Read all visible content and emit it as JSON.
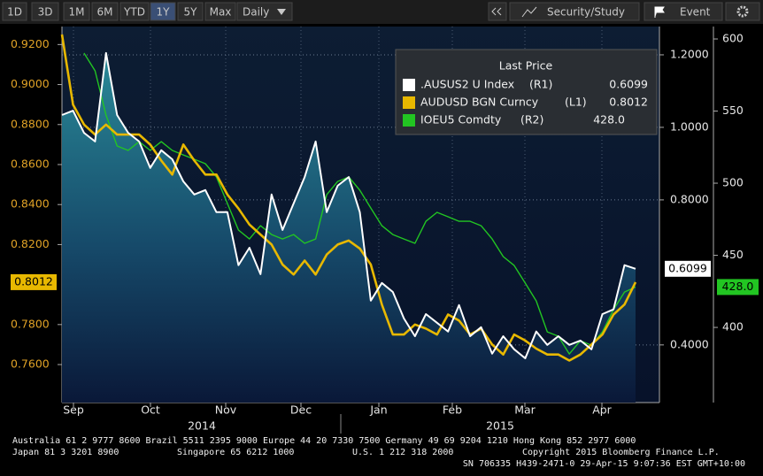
{
  "toolbar": {
    "buttons": [
      "1D",
      "3D",
      "1M",
      "6M",
      "YTD",
      "1Y",
      "5Y",
      "Max",
      "Daily"
    ],
    "selected": 5,
    "right": [
      "Security/Study",
      "Event"
    ]
  },
  "chart_data": {
    "type": "line",
    "legend_title": "Last Price",
    "months": [
      "Sep",
      "Oct",
      "Nov",
      "Dec",
      "Jan",
      "Feb",
      "Mar",
      "Apr"
    ],
    "years": [
      "2014",
      "2015"
    ],
    "ylim": [
      0.741,
      0.929
    ],
    "yticks": [
      {
        "value": 0.92,
        "label": "0.9200"
      },
      {
        "value": 0.9,
        "label": "0.9000"
      },
      {
        "value": 0.88,
        "label": "0.8800"
      },
      {
        "value": 0.86,
        "label": "0.8600"
      },
      {
        "value": 0.84,
        "label": "0.8400"
      },
      {
        "value": 0.82,
        "label": "0.8200"
      },
      {
        "value": 0.78,
        "label": "0.7800"
      },
      {
        "value": 0.76,
        "label": "0.7600"
      }
    ],
    "y2lim": [
      0.241,
      1.278
    ],
    "y2ticks": [
      {
        "value": 1.2,
        "label": "1.2000"
      },
      {
        "value": 1.0,
        "label": "1.0000"
      },
      {
        "value": 0.8,
        "label": "0.8000"
      },
      {
        "value": 0.4,
        "label": "0.4000"
      }
    ],
    "y3lim": [
      347.9,
      608.6
    ],
    "y3ticks": [
      600,
      550,
      500,
      450,
      400
    ],
    "grid": true,
    "series": [
      {
        "name": ".AUSUS2 U Index",
        "axis_label": "(R1)",
        "last_label": "0.6099",
        "axis": "y2",
        "color": "#ffffff",
        "fill_below": true,
        "values": [
          1.034,
          1.046,
          0.985,
          0.961,
          1.205,
          1.034,
          0.985,
          0.961,
          0.888,
          0.937,
          0.912,
          0.851,
          0.815,
          0.827,
          0.766,
          0.766,
          0.62,
          0.668,
          0.595,
          0.815,
          0.717,
          0.79,
          0.863,
          0.961,
          0.766,
          0.839,
          0.863,
          0.766,
          0.522,
          0.571,
          0.546,
          0.473,
          0.424,
          0.485,
          0.461,
          0.437,
          0.51,
          0.424,
          0.449,
          0.376,
          0.424,
          0.388,
          0.363,
          0.437,
          0.4,
          0.424,
          0.4,
          0.412,
          0.388,
          0.485,
          0.498,
          0.62,
          0.6099
        ]
      },
      {
        "name": "AUDUSD BGN Curncy",
        "axis_label": "(L1)",
        "last_label": "0.8012",
        "axis": "y",
        "color": "#e8b800",
        "values": [
          0.925,
          0.89,
          0.88,
          0.875,
          0.88,
          0.875,
          0.875,
          0.875,
          0.87,
          0.862,
          0.855,
          0.87,
          0.862,
          0.855,
          0.855,
          0.845,
          0.838,
          0.83,
          0.825,
          0.82,
          0.81,
          0.805,
          0.812,
          0.805,
          0.815,
          0.82,
          0.822,
          0.818,
          0.81,
          0.79,
          0.775,
          0.775,
          0.78,
          0.778,
          0.775,
          0.785,
          0.782,
          0.775,
          0.778,
          0.77,
          0.765,
          0.775,
          0.772,
          0.768,
          0.765,
          0.765,
          0.762,
          0.765,
          0.77,
          0.775,
          0.785,
          0.79,
          0.8012
        ]
      },
      {
        "name": "IOEU5 Comdty",
        "axis_label": "(R2)",
        "last_label": "428.0",
        "axis": "y3",
        "color": "#22c522",
        "values": [
          null,
          null,
          590.2,
          577.9,
          547.2,
          525.8,
          522.7,
          528.8,
          522.7,
          528.8,
          522.7,
          519.6,
          516.6,
          513.5,
          504.3,
          485.9,
          467.5,
          461.3,
          470.5,
          464.4,
          461.3,
          464.4,
          458.3,
          461.3,
          492,
          501.2,
          504.3,
          495.1,
          482.8,
          470.5,
          464.4,
          461.3,
          458.3,
          473.6,
          479.8,
          476.7,
          473.6,
          473.6,
          470.5,
          461.3,
          449.1,
          442.9,
          430.7,
          418.4,
          396.9,
          393.9,
          381.6,
          390.8,
          387.7,
          396.9,
          412.3,
          424.5,
          428
        ]
      }
    ]
  },
  "footer": {
    "line1": "Australia 61 2 9777 8600 Brazil 5511 2395 9000 Europe 44 20 7330 7500 Germany 49 69 9204 1210 Hong Kong 852 2977 6000",
    "line2": [
      "Japan 81 3 3201 8900",
      "Singapore 65 6212 1000",
      "U.S. 1 212 318 2000",
      "Copyright 2015 Bloomberg Finance L.P."
    ],
    "line3": "SN 706335 H439-2471-0 29-Apr-15  9:07:36 EST  GMT+10:00"
  }
}
